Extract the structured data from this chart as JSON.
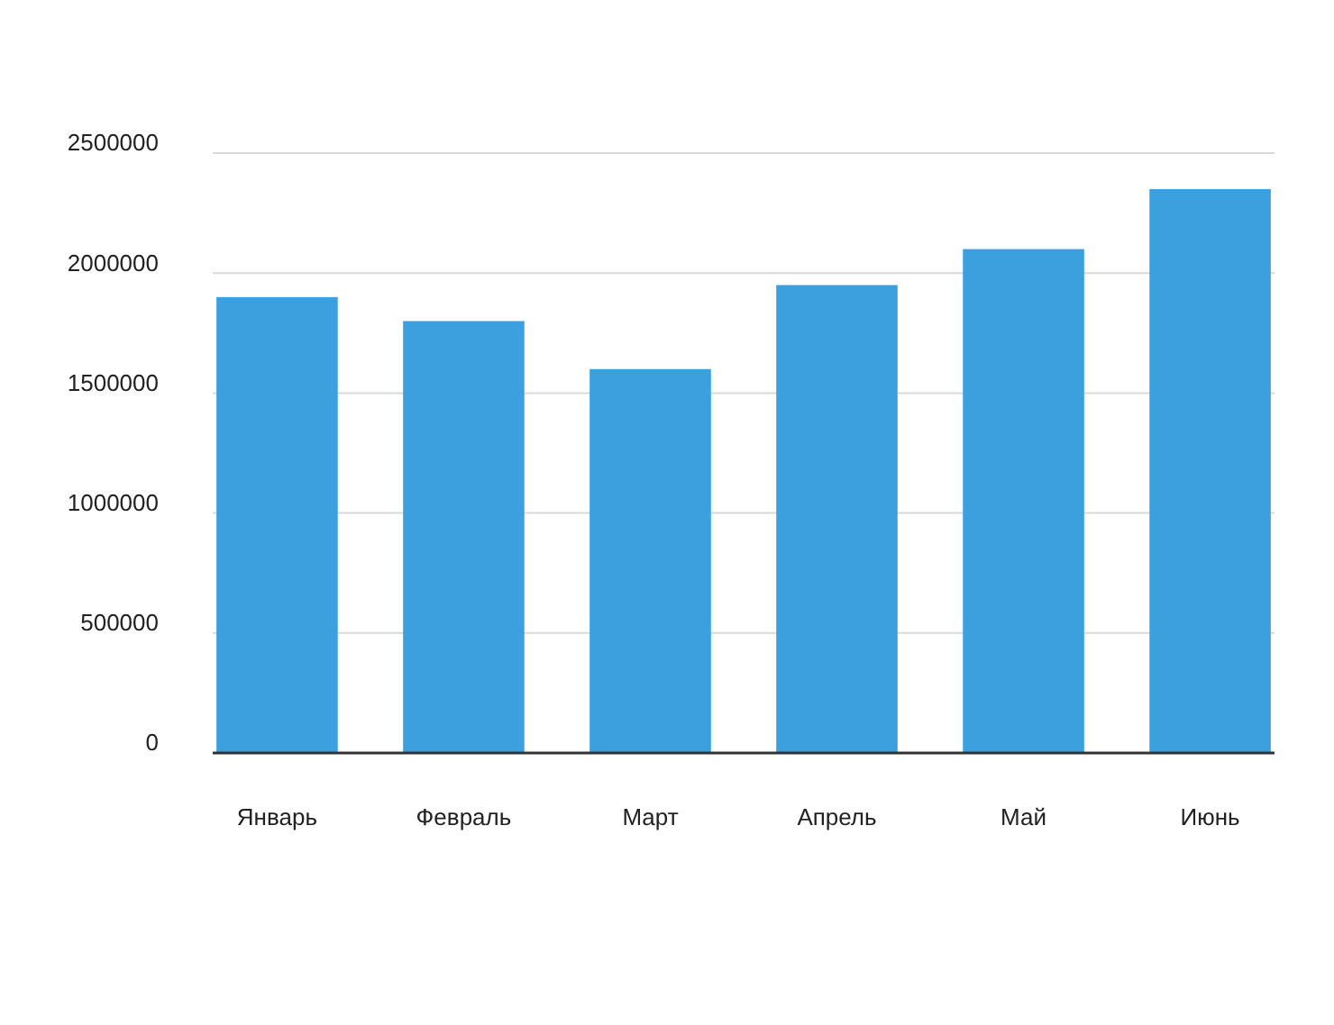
{
  "chart_data": {
    "type": "bar",
    "categories": [
      "Январь",
      "Февраль",
      "Март",
      "Апрель",
      "Май",
      "Июнь"
    ],
    "values": [
      1900000,
      1800000,
      1600000,
      1950000,
      2100000,
      2350000
    ],
    "color": "#3ba0dd",
    "ylim": [
      0,
      2500000
    ],
    "yticks": [
      0,
      500000,
      1000000,
      1500000,
      2000000,
      2500000
    ],
    "grid": "y"
  }
}
